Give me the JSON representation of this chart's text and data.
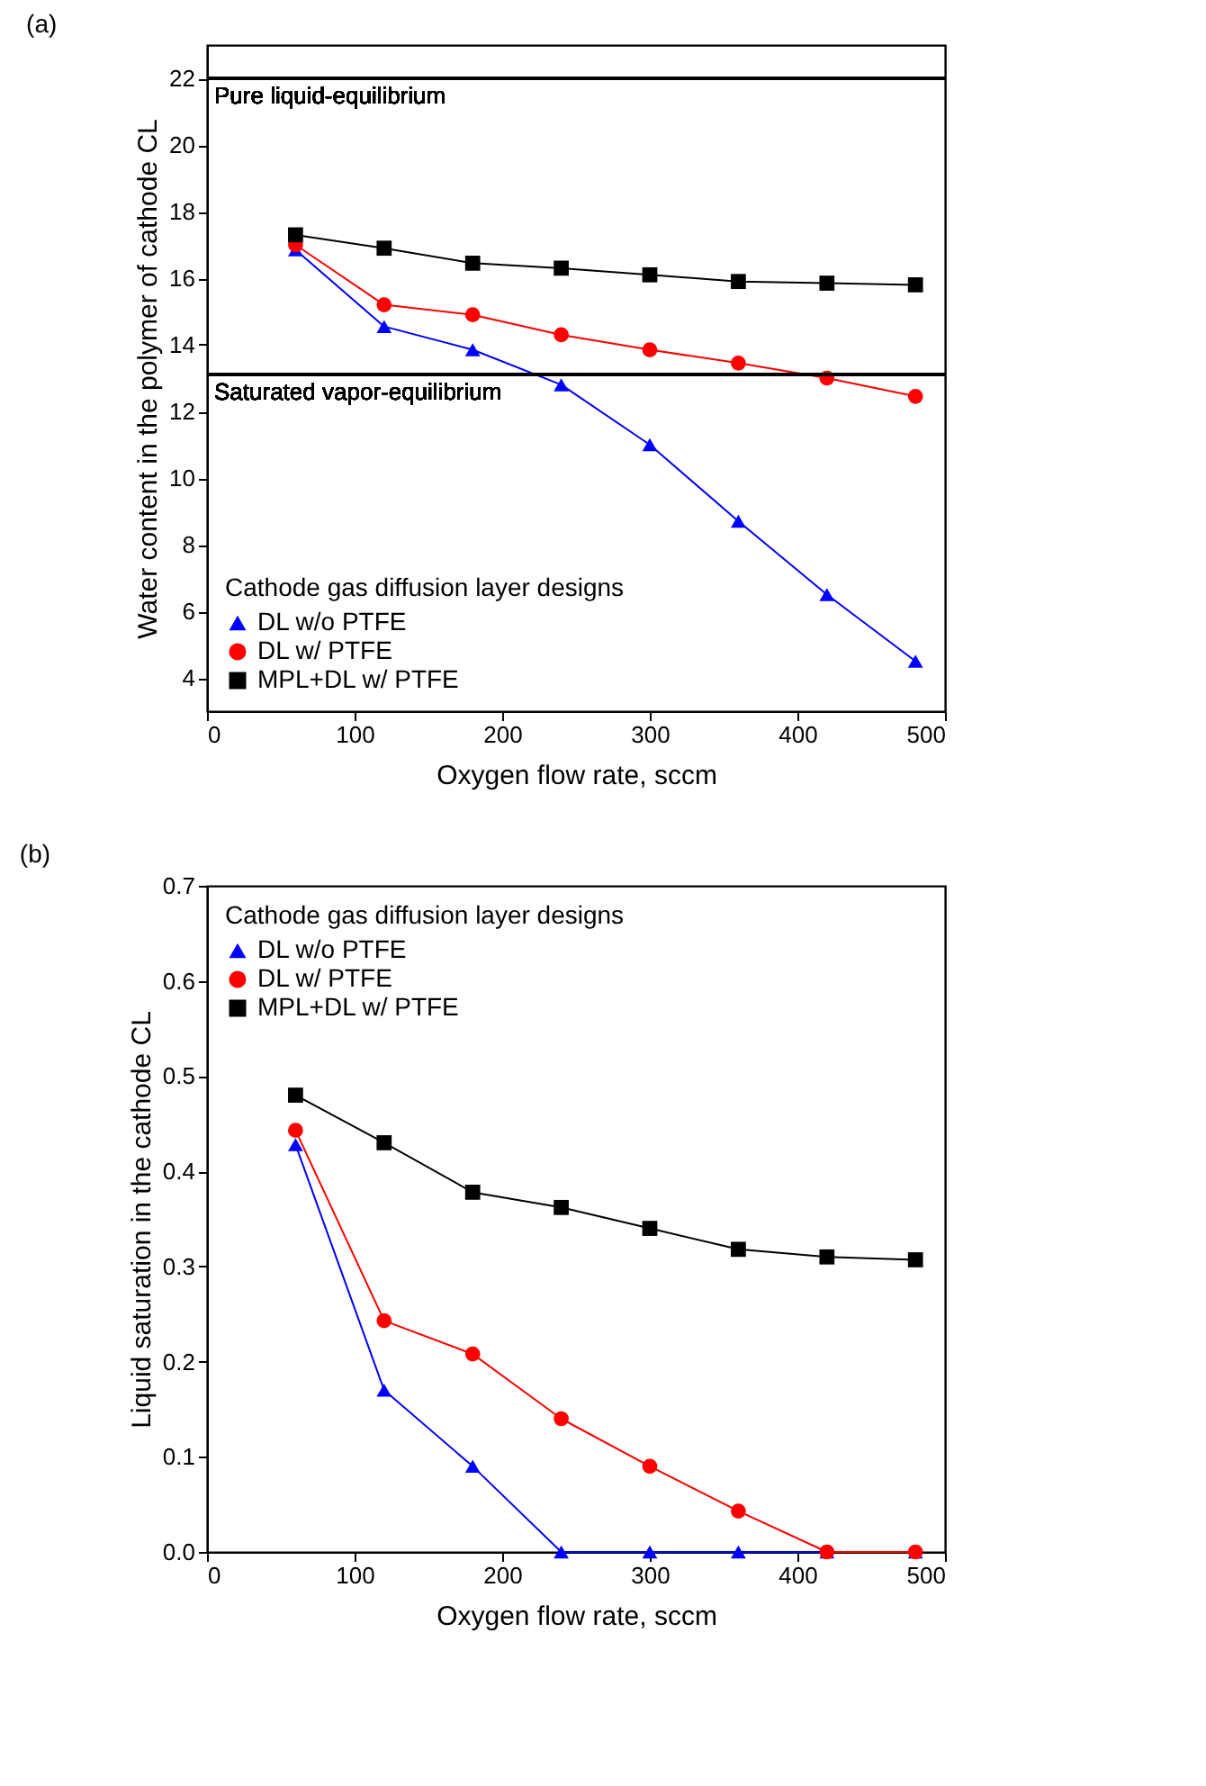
{
  "chart_data": [
    {
      "type": "line",
      "title": "(a)",
      "xlabel": "Oxygen flow rate, sccm",
      "ylabel": "Water content in the polymer of cathode CL",
      "legend_title": "Cathode gas diffusion layer designs",
      "legend": "bottom left",
      "grid": false,
      "line_style": "solid",
      "x": [
        60,
        120,
        180,
        240,
        300,
        360,
        420,
        480
      ],
      "xlim": [
        0,
        500
      ],
      "xticks": [
        0,
        100,
        200,
        300,
        400,
        500
      ],
      "ylim": [
        3,
        23
      ],
      "yticks": [
        4,
        6,
        8,
        10,
        12,
        14,
        16,
        18,
        20,
        22
      ],
      "series": [
        {
          "name": "DL w/o PTFE",
          "color": "#0000ff",
          "marker": "triangle",
          "values": [
            16.85,
            14.55,
            13.85,
            12.8,
            11.0,
            8.7,
            6.5,
            4.5
          ]
        },
        {
          "name": "DL w/ PTFE",
          "color": "#ff0000",
          "marker": "circle",
          "values": [
            17.0,
            15.2,
            14.9,
            14.3,
            13.85,
            13.45,
            13.0,
            12.45
          ]
        },
        {
          "name": "MPL+DL w/ PTFE",
          "color": "#000000",
          "marker": "square",
          "values": [
            17.3,
            16.9,
            16.45,
            16.3,
            16.1,
            15.9,
            15.85,
            15.8
          ]
        }
      ],
      "ref_lines": [
        {
          "axis": "y",
          "value": 22,
          "label": "Pure liquid-equilibrium",
          "color": "#000000"
        },
        {
          "axis": "y",
          "value": 13.1,
          "label": "Saturated vapor-equilibrium",
          "color": "#000000"
        }
      ]
    },
    {
      "type": "line",
      "title": "(b)",
      "xlabel": "Oxygen flow rate, sccm",
      "ylabel": "Liquid saturation in the cathode CL",
      "legend_title": "Cathode gas diffusion layer designs",
      "legend": "top left",
      "grid": false,
      "line_style": "solid",
      "x": [
        60,
        120,
        180,
        240,
        300,
        360,
        420,
        480
      ],
      "xlim": [
        0,
        500
      ],
      "xticks": [
        0,
        100,
        200,
        300,
        400,
        500
      ],
      "ylim": [
        0,
        0.7
      ],
      "yticks": [
        {
          "value": 0,
          "label": "0.0"
        },
        0.1,
        0.2,
        0.3,
        0.4,
        0.5,
        0.6,
        0.7
      ],
      "series": [
        {
          "name": "DL w/o PTFE",
          "color": "#0000ff",
          "marker": "triangle",
          "values": [
            0.428,
            0.17,
            0.09,
            0,
            0,
            0,
            0,
            0
          ]
        },
        {
          "name": "DL w/ PTFE",
          "color": "#ff0000",
          "marker": "circle",
          "values": [
            0.443,
            0.243,
            0.208,
            0.14,
            0.09,
            0.043,
            0,
            0
          ]
        },
        {
          "name": "MPL+DL w/ PTFE",
          "color": "#000000",
          "marker": "square",
          "values": [
            0.48,
            0.43,
            0.378,
            0.362,
            0.34,
            0.318,
            0.31,
            0.307
          ]
        }
      ]
    }
  ]
}
